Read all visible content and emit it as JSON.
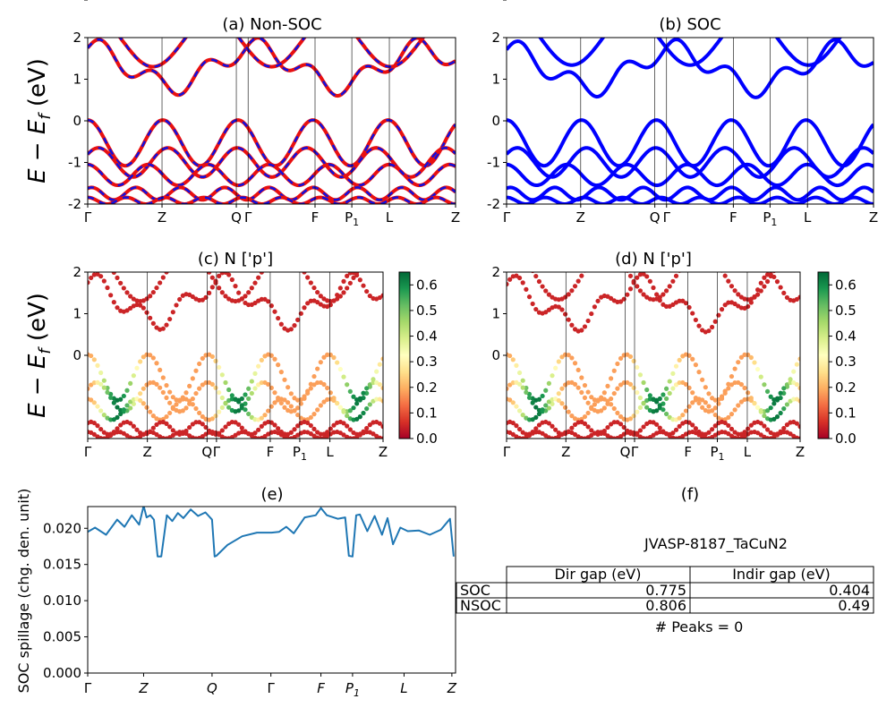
{
  "panels": {
    "a": {
      "title": "(a) Non-SOC"
    },
    "b": {
      "title": "(b) SOC"
    },
    "c": {
      "title": "(c)  N ['p']"
    },
    "d": {
      "title": "(d) N ['p']"
    },
    "e": {
      "title": "(e)"
    },
    "f": {
      "title": "(f)"
    }
  },
  "ylabels": {
    "band": "E − E",
    "band_sub": "f",
    "band_unit": " (eV)",
    "spillage": "SOC spillage (chg. den. unit)"
  },
  "kpath": {
    "labels": [
      "Γ",
      "Z",
      "Q",
      "Γ",
      "F",
      "P",
      "L",
      "Z"
    ],
    "sub_index": 5,
    "sub": "1",
    "positions": [
      0,
      0.202,
      0.404,
      0.436,
      0.618,
      0.718,
      0.82,
      1.0
    ]
  },
  "spill_kpath": {
    "labels": [
      "Γ",
      "Z",
      "Q",
      "Γ",
      "F",
      "P",
      "L",
      "Z"
    ],
    "sub": "1",
    "positions": [
      0,
      0.152,
      0.338,
      0.498,
      0.634,
      0.72,
      0.86,
      0.99
    ]
  },
  "colorbar": {
    "ticks": [
      "0.0",
      "0.1",
      "0.2",
      "0.3",
      "0.4",
      "0.5",
      "0.6"
    ],
    "min": 0,
    "max": 0.65
  },
  "chart_data": [
    {
      "type": "line",
      "id": "a",
      "title": "(a) Non-SOC",
      "ylabel": "E − E_f (eV)",
      "ylim": [
        -2,
        2
      ],
      "yticks": [
        -2,
        -1,
        0,
        1,
        2
      ],
      "series": [
        {
          "color": "#e81010"
        },
        {
          "color": "#1010e0"
        }
      ]
    },
    {
      "type": "line",
      "id": "b",
      "title": "(b) SOC",
      "ylim": [
        -2,
        2
      ],
      "yticks": [
        -2,
        -1,
        0,
        1,
        2
      ],
      "series": [
        {
          "color": "#0000ff"
        }
      ]
    },
    {
      "type": "scatter",
      "id": "c",
      "title": "(c)  N ['p']",
      "ylabel": "E − E_f (eV)",
      "ylim": [
        -2,
        2
      ],
      "colormap": "RdYlGn",
      "clim": [
        0,
        0.65
      ]
    },
    {
      "type": "scatter",
      "id": "d",
      "title": "(d) N ['p']",
      "ylim": [
        -2,
        2
      ],
      "colormap": "RdYlGn",
      "clim": [
        0,
        0.65
      ]
    },
    {
      "type": "line",
      "id": "e",
      "title": "(e)",
      "ylabel": "SOC spillage (chg. den. unit)",
      "ylim": [
        0,
        0.023
      ],
      "yticks": [
        "0.000",
        "0.005",
        "0.010",
        "0.015",
        "0.020"
      ],
      "series": [
        {
          "color": "#1f77b4",
          "x": [
            0,
            0.02,
            0.05,
            0.08,
            0.1,
            0.12,
            0.14,
            0.152,
            0.16,
            0.17,
            0.18,
            0.19,
            0.2,
            0.215,
            0.23,
            0.245,
            0.26,
            0.28,
            0.3,
            0.32,
            0.338,
            0.345,
            0.35,
            0.38,
            0.42,
            0.46,
            0.5,
            0.52,
            0.54,
            0.56,
            0.59,
            0.62,
            0.634,
            0.65,
            0.68,
            0.7,
            0.71,
            0.72,
            0.73,
            0.74,
            0.76,
            0.78,
            0.8,
            0.815,
            0.83,
            0.85,
            0.87,
            0.9,
            0.93,
            0.96,
            0.985,
            0.995
          ],
          "y": [
            0.0195,
            0.0201,
            0.0191,
            0.0212,
            0.0202,
            0.0218,
            0.0205,
            0.0231,
            0.0215,
            0.0218,
            0.0212,
            0.0161,
            0.0161,
            0.0218,
            0.021,
            0.0221,
            0.0214,
            0.0226,
            0.0217,
            0.0222,
            0.0212,
            0.0161,
            0.0162,
            0.0177,
            0.0189,
            0.0194,
            0.0194,
            0.0195,
            0.0202,
            0.0193,
            0.0215,
            0.0218,
            0.0228,
            0.0218,
            0.0213,
            0.0215,
            0.0162,
            0.0161,
            0.0218,
            0.0219,
            0.0196,
            0.0217,
            0.0191,
            0.0214,
            0.0178,
            0.0201,
            0.0196,
            0.0197,
            0.0191,
            0.0198,
            0.0213,
            0.0161
          ]
        }
      ]
    },
    {
      "type": "table",
      "id": "f",
      "title": "(f)",
      "caption": "JVASP-8187_TaCuN2",
      "columns": [
        "",
        "Dir gap (eV)",
        "Indir gap (eV)"
      ],
      "rows": [
        [
          "SOC",
          "0.775",
          "0.404"
        ],
        [
          "NSOC",
          "0.806",
          "0.49"
        ]
      ],
      "footer": "# Peaks = 0"
    }
  ]
}
